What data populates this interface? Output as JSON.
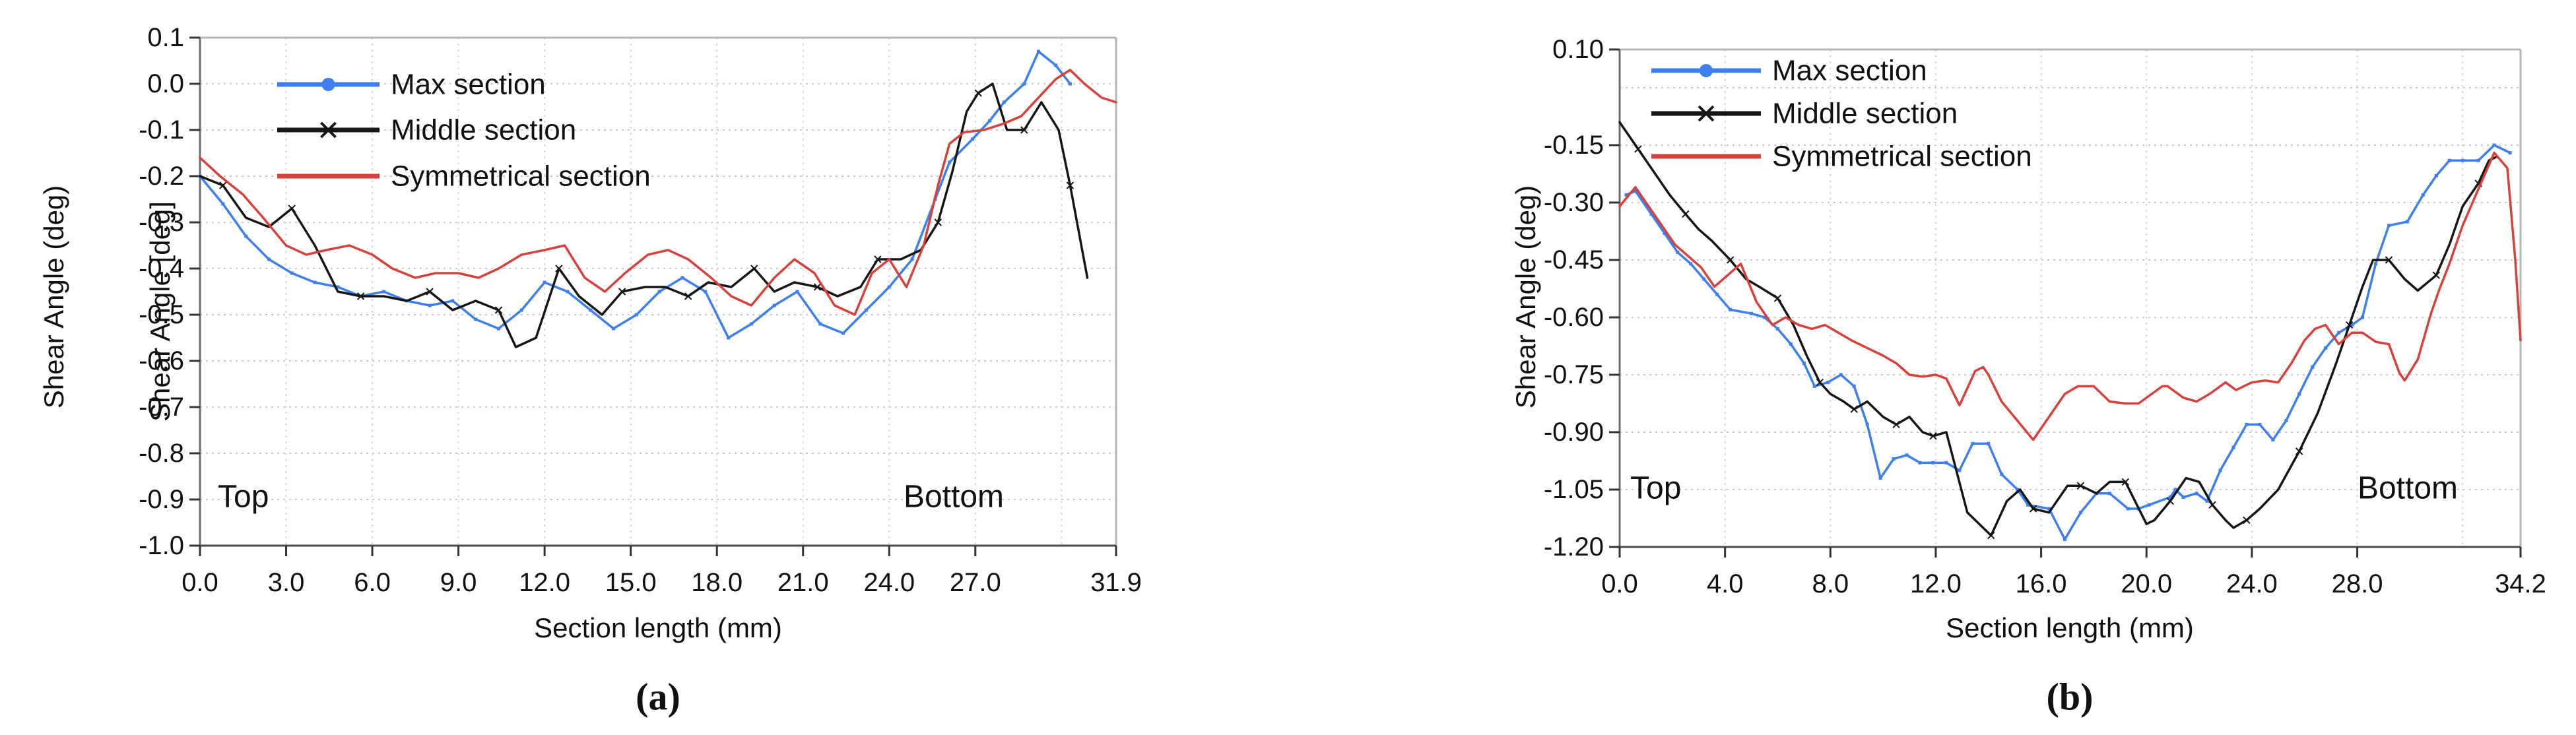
{
  "figure": {
    "background": "#ffffff",
    "captions": {
      "a": "(a)",
      "b": "(b)"
    }
  },
  "chart_data": [
    {
      "id": "a",
      "type": "line",
      "caption": "(a)",
      "xlabel": "Section length (mm)",
      "ylabel_outer": "Shear Angle (deg)",
      "ylabel_inner": "Shear Angle [deg]",
      "annotation_top": "Top",
      "annotation_bottom": "Bottom",
      "xlim": [
        0,
        31.9
      ],
      "ylim": [
        -1.0,
        0.1
      ],
      "grid": true,
      "legend_position": "top-left-inside",
      "xticks": [
        {
          "v": 0,
          "label": "0.0"
        },
        {
          "v": 3,
          "label": "3.0"
        },
        {
          "v": 6,
          "label": "6.0"
        },
        {
          "v": 9,
          "label": "9.0"
        },
        {
          "v": 12,
          "label": "12.0"
        },
        {
          "v": 15,
          "label": "15.0"
        },
        {
          "v": 18,
          "label": "18.0"
        },
        {
          "v": 21,
          "label": "21.0"
        },
        {
          "v": 24,
          "label": "24.0"
        },
        {
          "v": 27,
          "label": "27.0"
        },
        {
          "v": 31.9,
          "label": "31.9"
        }
      ],
      "yticks": [
        {
          "v": 0.1,
          "label": "0.1"
        },
        {
          "v": 0.0,
          "label": "0.0"
        },
        {
          "v": -0.1,
          "label": "-0.1"
        },
        {
          "v": -0.2,
          "label": "-0.2"
        },
        {
          "v": -0.3,
          "label": "-0.3"
        },
        {
          "v": -0.4,
          "label": "-0.4"
        },
        {
          "v": -0.5,
          "label": "-0.5"
        },
        {
          "v": -0.6,
          "label": "-0.6"
        },
        {
          "v": -0.7,
          "label": "-0.7"
        },
        {
          "v": -0.8,
          "label": "-0.8"
        },
        {
          "v": -0.9,
          "label": "-0.9"
        },
        {
          "v": -1.0,
          "label": "-1.0"
        }
      ],
      "xgrid": [
        3,
        6,
        9,
        12,
        15,
        18,
        21,
        24,
        27,
        30
      ],
      "ygrid": [
        0.0,
        -0.1,
        -0.2,
        -0.3,
        -0.4,
        -0.5,
        -0.6,
        -0.7,
        -0.8,
        -0.9
      ],
      "series": [
        {
          "name": "Max section",
          "color": "#3e7ff0",
          "marker": "dot",
          "x": [
            0,
            0.8,
            1.6,
            2.4,
            3.2,
            4,
            4.8,
            5.6,
            6.4,
            7.2,
            8,
            8.8,
            9.6,
            10.4,
            11.2,
            12,
            12.8,
            13.6,
            14.4,
            15.2,
            16,
            16.8,
            17.6,
            18.4,
            19.2,
            20,
            20.8,
            21.6,
            22.4,
            23.2,
            24,
            24.8,
            25.6,
            26.1,
            26.9,
            27.5,
            28,
            28.7,
            29.2,
            29.8,
            30.3
          ],
          "y": [
            -0.2,
            -0.26,
            -0.33,
            -0.38,
            -0.41,
            -0.43,
            -0.44,
            -0.46,
            -0.45,
            -0.47,
            -0.48,
            -0.47,
            -0.51,
            -0.53,
            -0.49,
            -0.43,
            -0.45,
            -0.49,
            -0.53,
            -0.5,
            -0.45,
            -0.42,
            -0.45,
            -0.55,
            -0.52,
            -0.48,
            -0.45,
            -0.52,
            -0.54,
            -0.49,
            -0.44,
            -0.38,
            -0.25,
            -0.17,
            -0.12,
            -0.08,
            -0.04,
            0.0,
            0.07,
            0.04,
            0.0
          ]
        },
        {
          "name": "Middle section",
          "color": "#161616",
          "marker": "x",
          "x": [
            0,
            0.8,
            1.6,
            2.4,
            3.2,
            4,
            4.8,
            5.6,
            6.4,
            7.2,
            8,
            8.8,
            9.6,
            10.4,
            11,
            11.7,
            12.5,
            13.2,
            14,
            14.7,
            15.5,
            16.2,
            17,
            17.7,
            18.5,
            19.3,
            20,
            20.7,
            21.5,
            22.2,
            23,
            23.6,
            24.4,
            25.1,
            25.7,
            26.2,
            26.7,
            27.1,
            27.6,
            28.1,
            28.7,
            29.3,
            29.9,
            30.3,
            30.9
          ],
          "y": [
            -0.2,
            -0.22,
            -0.29,
            -0.31,
            -0.27,
            -0.35,
            -0.45,
            -0.46,
            -0.46,
            -0.47,
            -0.45,
            -0.49,
            -0.47,
            -0.49,
            -0.57,
            -0.55,
            -0.4,
            -0.46,
            -0.5,
            -0.45,
            -0.44,
            -0.44,
            -0.46,
            -0.43,
            -0.44,
            -0.4,
            -0.45,
            -0.43,
            -0.44,
            -0.46,
            -0.44,
            -0.38,
            -0.38,
            -0.36,
            -0.3,
            -0.19,
            -0.06,
            -0.02,
            0.0,
            -0.1,
            -0.1,
            -0.04,
            -0.1,
            -0.22,
            -0.42
          ]
        },
        {
          "name": "Symmetrical section",
          "color": "#d8403c",
          "marker": "none",
          "x": [
            0,
            0.7,
            1.5,
            2.2,
            3,
            3.7,
            4.4,
            5.2,
            6,
            6.7,
            7.5,
            8.2,
            9,
            9.7,
            10.4,
            11.2,
            12,
            12.7,
            13.4,
            14.1,
            14.8,
            15.6,
            16.3,
            17,
            17.8,
            18.5,
            19.2,
            20,
            20.7,
            21.4,
            22.1,
            22.8,
            23.4,
            24,
            24.6,
            25.2,
            25.7,
            26.1,
            26.6,
            27.3,
            28,
            28.6,
            29.2,
            29.8,
            30.3,
            30.8,
            31.4,
            31.9
          ],
          "y": [
            -0.16,
            -0.2,
            -0.24,
            -0.29,
            -0.35,
            -0.37,
            -0.36,
            -0.35,
            -0.37,
            -0.4,
            -0.42,
            -0.41,
            -0.41,
            -0.42,
            -0.4,
            -0.37,
            -0.36,
            -0.35,
            -0.42,
            -0.45,
            -0.41,
            -0.37,
            -0.36,
            -0.38,
            -0.42,
            -0.46,
            -0.48,
            -0.42,
            -0.38,
            -0.41,
            -0.48,
            -0.5,
            -0.41,
            -0.38,
            -0.44,
            -0.35,
            -0.22,
            -0.13,
            -0.105,
            -0.1,
            -0.086,
            -0.07,
            -0.03,
            0.01,
            0.03,
            0.0,
            -0.03,
            -0.04
          ]
        }
      ]
    },
    {
      "id": "b",
      "type": "line",
      "caption": "(b)",
      "xlabel": "Section length (mm)",
      "ylabel_outer": "Shear Angle (deg)",
      "ylabel_inner": "",
      "annotation_top": "Top",
      "annotation_bottom": "Bottom",
      "xlim": [
        0,
        34.2
      ],
      "ylim": [
        -1.2,
        0.1
      ],
      "grid": true,
      "legend_position": "top-left-inside",
      "xticks": [
        {
          "v": 0,
          "label": "0.0"
        },
        {
          "v": 4,
          "label": "4.0"
        },
        {
          "v": 8,
          "label": "8.0"
        },
        {
          "v": 12,
          "label": "12.0"
        },
        {
          "v": 16,
          "label": "16.0"
        },
        {
          "v": 20,
          "label": "20.0"
        },
        {
          "v": 24,
          "label": "24.0"
        },
        {
          "v": 28,
          "label": "28.0"
        },
        {
          "v": 34.2,
          "label": "34.2"
        }
      ],
      "yticks": [
        {
          "v": 0.1,
          "label": "0.10"
        },
        {
          "v": -0.15,
          "label": "-0.15"
        },
        {
          "v": -0.3,
          "label": "-0.30"
        },
        {
          "v": -0.45,
          "label": "-0.45"
        },
        {
          "v": -0.6,
          "label": "-0.60"
        },
        {
          "v": -0.75,
          "label": "-0.75"
        },
        {
          "v": -0.9,
          "label": "-0.90"
        },
        {
          "v": -1.05,
          "label": "-1.05"
        },
        {
          "v": -1.2,
          "label": "-1.20"
        }
      ],
      "xgrid": [
        4,
        8,
        12,
        16,
        20,
        24,
        28,
        32
      ],
      "ygrid": [
        0.0,
        -0.15,
        -0.3,
        -0.45,
        -0.6,
        -0.75,
        -0.9,
        -1.05
      ],
      "series": [
        {
          "name": "Max section",
          "color": "#3e7ff0",
          "marker": "dot",
          "x": [
            0.25,
            0.6,
            1.2,
            1.7,
            2.2,
            2.7,
            3.2,
            3.7,
            4.2,
            5.0,
            5.5,
            6.0,
            6.5,
            7.0,
            7.4,
            7.9,
            8.4,
            8.9,
            9.4,
            9.9,
            10.4,
            10.9,
            11.4,
            11.9,
            12.4,
            12.9,
            13.4,
            14.0,
            14.5,
            15.1,
            15.5,
            16.3,
            16.9,
            17.5,
            18.1,
            18.6,
            19.3,
            19.7,
            20.1,
            20.9,
            21.1,
            21.4,
            21.9,
            22.3,
            22.8,
            23.3,
            23.8,
            24.3,
            24.8,
            25.3,
            25.8,
            26.3,
            26.8,
            27.3,
            27.8,
            28.2,
            28.7,
            29.2,
            29.9,
            30.5,
            31.0,
            31.5,
            32.0,
            32.6,
            33.2,
            33.8
          ],
          "y": [
            -0.28,
            -0.27,
            -0.33,
            -0.38,
            -0.43,
            -0.46,
            -0.5,
            -0.54,
            -0.58,
            -0.59,
            -0.6,
            -0.63,
            -0.67,
            -0.72,
            -0.78,
            -0.77,
            -0.75,
            -0.78,
            -0.88,
            -1.02,
            -0.97,
            -0.96,
            -0.98,
            -0.98,
            -0.98,
            -1.0,
            -0.93,
            -0.93,
            -1.01,
            -1.05,
            -1.09,
            -1.1,
            -1.18,
            -1.11,
            -1.06,
            -1.06,
            -1.1,
            -1.1,
            -1.09,
            -1.07,
            -1.05,
            -1.07,
            -1.06,
            -1.08,
            -1.0,
            -0.94,
            -0.88,
            -0.88,
            -0.92,
            -0.87,
            -0.8,
            -0.73,
            -0.68,
            -0.64,
            -0.62,
            -0.6,
            -0.46,
            -0.36,
            -0.35,
            -0.28,
            -0.23,
            -0.19,
            -0.19,
            -0.19,
            -0.15,
            -0.17
          ]
        },
        {
          "name": "Middle section",
          "color": "#161616",
          "marker": "x",
          "x": [
            0,
            0.7,
            1.3,
            1.9,
            2.5,
            3.0,
            3.5,
            4.2,
            4.8,
            5.3,
            6.0,
            6.6,
            7.1,
            7.6,
            8.0,
            8.5,
            8.9,
            9.4,
            10.0,
            10.5,
            11.0,
            11.5,
            11.9,
            12.4,
            13.2,
            14.1,
            14.7,
            15.2,
            15.7,
            16.3,
            17.0,
            17.5,
            18.1,
            18.6,
            19.2,
            20.0,
            20.3,
            20.9,
            21.5,
            22.0,
            22.5,
            23.0,
            23.3,
            23.8,
            24.3,
            25.0,
            25.8,
            26.5,
            27.2,
            27.7,
            28.2,
            28.6,
            29.2,
            29.8,
            30.3,
            31.0,
            31.5,
            32.0,
            32.6,
            33.0,
            33.3
          ],
          "y": [
            -0.09,
            -0.16,
            -0.22,
            -0.28,
            -0.33,
            -0.37,
            -0.4,
            -0.45,
            -0.5,
            -0.52,
            -0.55,
            -0.62,
            -0.7,
            -0.77,
            -0.8,
            -0.82,
            -0.84,
            -0.82,
            -0.86,
            -0.88,
            -0.86,
            -0.9,
            -0.91,
            -0.9,
            -1.11,
            -1.17,
            -1.08,
            -1.05,
            -1.1,
            -1.11,
            -1.04,
            -1.04,
            -1.06,
            -1.03,
            -1.03,
            -1.14,
            -1.13,
            -1.08,
            -1.02,
            -1.03,
            -1.09,
            -1.13,
            -1.15,
            -1.13,
            -1.1,
            -1.05,
            -0.95,
            -0.85,
            -0.72,
            -0.62,
            -0.52,
            -0.45,
            -0.45,
            -0.5,
            -0.53,
            -0.49,
            -0.41,
            -0.31,
            -0.25,
            -0.19,
            -0.18
          ]
        },
        {
          "name": "Symmetrical section",
          "color": "#d8403c",
          "marker": "none",
          "x": [
            0,
            0.6,
            1.1,
            1.6,
            2.1,
            2.6,
            3.1,
            3.6,
            4.1,
            4.6,
            5.2,
            5.8,
            6.3,
            6.8,
            7.3,
            7.8,
            8.3,
            8.8,
            9.4,
            10.0,
            10.5,
            11.0,
            11.5,
            12.0,
            12.4,
            12.9,
            13.5,
            13.8,
            14.0,
            14.5,
            15.1,
            15.7,
            16.4,
            16.9,
            17.4,
            18.0,
            18.6,
            19.2,
            19.7,
            20.2,
            20.6,
            20.8,
            21.4,
            21.9,
            22.4,
            23.0,
            23.4,
            24.0,
            24.5,
            25.0,
            25.5,
            26.0,
            26.4,
            26.8,
            27.3,
            27.8,
            28.2,
            28.7,
            29.2,
            29.6,
            29.8,
            30.3,
            30.8,
            31.1,
            31.5,
            32.0,
            32.6,
            33.2,
            33.7,
            34.0,
            34.2
          ],
          "y": [
            -0.31,
            -0.26,
            -0.31,
            -0.36,
            -0.41,
            -0.44,
            -0.47,
            -0.52,
            -0.49,
            -0.46,
            -0.56,
            -0.62,
            -0.6,
            -0.62,
            -0.63,
            -0.62,
            -0.64,
            -0.66,
            -0.68,
            -0.7,
            -0.72,
            -0.75,
            -0.755,
            -0.75,
            -0.76,
            -0.83,
            -0.74,
            -0.73,
            -0.75,
            -0.82,
            -0.87,
            -0.92,
            -0.85,
            -0.8,
            -0.78,
            -0.78,
            -0.82,
            -0.825,
            -0.825,
            -0.8,
            -0.78,
            -0.78,
            -0.81,
            -0.82,
            -0.8,
            -0.77,
            -0.79,
            -0.77,
            -0.765,
            -0.77,
            -0.72,
            -0.66,
            -0.63,
            -0.62,
            -0.67,
            -0.64,
            -0.64,
            -0.664,
            -0.67,
            -0.745,
            -0.765,
            -0.71,
            -0.59,
            -0.53,
            -0.46,
            -0.36,
            -0.265,
            -0.17,
            -0.21,
            -0.45,
            -0.66
          ]
        }
      ]
    }
  ]
}
